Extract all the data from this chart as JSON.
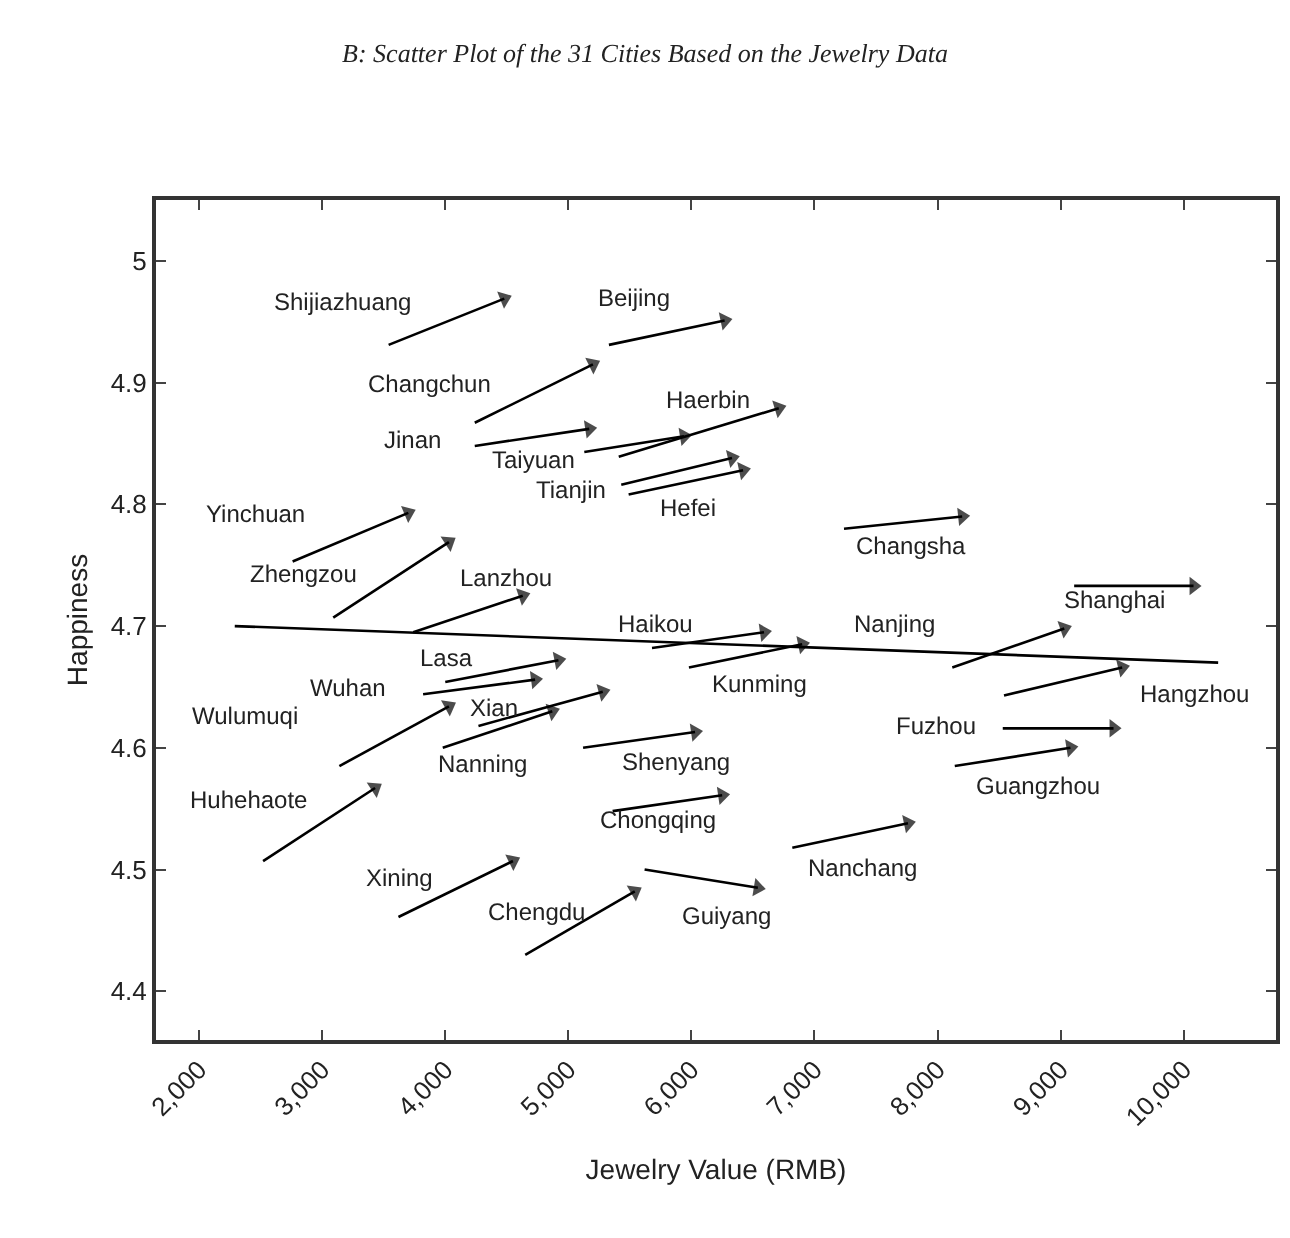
{
  "chart_data": {
    "type": "line",
    "title": "B: Scatter Plot of the 31 Cities Based on the Jewelry Data",
    "xlabel": "Jewelry Value (RMB)",
    "ylabel": "Happiness",
    "xlim": [
      1650,
      10750
    ],
    "ylim": [
      4.36,
      5.05
    ],
    "xticks": [
      {
        "value": 2000,
        "label": "2,000"
      },
      {
        "value": 3000,
        "label": "3,000"
      },
      {
        "value": 4000,
        "label": "4,000"
      },
      {
        "value": 5000,
        "label": "5,000"
      },
      {
        "value": 6000,
        "label": "6,000"
      },
      {
        "value": 7000,
        "label": "7,000"
      },
      {
        "value": 8000,
        "label": "8,000"
      },
      {
        "value": 9000,
        "label": "9,000"
      },
      {
        "value": 10000,
        "label": "10,000"
      }
    ],
    "yticks": [
      4.4,
      4.5,
      4.6,
      4.7,
      4.8,
      4.9,
      5
    ],
    "legend": false,
    "marker": "triangle",
    "line_style": "solid",
    "series": [
      {
        "name": "Shijiazhuang",
        "color": "#000000",
        "x": [
          3540,
          4480
        ],
        "values": [
          4.931,
          4.969
        ]
      },
      {
        "name": "Beijing",
        "color": "#000000",
        "x": [
          5330,
          6270
        ],
        "values": [
          4.931,
          4.951
        ]
      },
      {
        "name": "Changchun",
        "color": "#000000",
        "x": [
          4240,
          5200
        ],
        "values": [
          4.867,
          4.915
        ]
      },
      {
        "name": "Jinan",
        "color": "#000000",
        "x": [
          4240,
          5170
        ],
        "values": [
          4.848,
          4.862
        ]
      },
      {
        "name": "Taiyuan",
        "color": "#000000",
        "x": [
          5130,
          5940
        ],
        "values": [
          4.843,
          4.856
        ]
      },
      {
        "name": "Haerbin",
        "color": "#000000",
        "x": [
          5410,
          6710
        ],
        "values": [
          4.839,
          4.879
        ]
      },
      {
        "name": "Tianjin",
        "color": "#000000",
        "x": [
          5430,
          6330
        ],
        "values": [
          4.816,
          4.838
        ]
      },
      {
        "name": "Hefei",
        "color": "#000000",
        "x": [
          5490,
          6420
        ],
        "values": [
          4.808,
          4.828
        ]
      },
      {
        "name": "Yinchuan",
        "color": "#000000",
        "x": [
          2760,
          3700
        ],
        "values": [
          4.753,
          4.793
        ]
      },
      {
        "name": "Zhengzou",
        "color": "#000000",
        "x": [
          3090,
          4030
        ],
        "values": [
          4.707,
          4.769
        ]
      },
      {
        "name": "Lanzhou",
        "color": "#000000",
        "x": [
          3740,
          4630
        ],
        "values": [
          4.695,
          4.725
        ]
      },
      {
        "name": "Changsha",
        "color": "#000000",
        "x": [
          7240,
          8200
        ],
        "values": [
          4.78,
          4.79
        ]
      },
      {
        "name": "Shanghai",
        "color": "#000000",
        "x": [
          9110,
          10080
        ],
        "values": [
          4.733,
          4.733
        ]
      },
      {
        "name": "Haikou",
        "color": "#000000",
        "x": [
          5680,
          6590
        ],
        "values": [
          4.682,
          4.695
        ]
      },
      {
        "name": "Kunming",
        "color": "#000000",
        "x": [
          5980,
          6900
        ],
        "values": [
          4.666,
          4.685
        ]
      },
      {
        "name": "Lasa",
        "color": "#000000",
        "x": [
          4000,
          4920
        ],
        "values": [
          4.654,
          4.672
        ]
      },
      {
        "name": "Wuhan",
        "color": "#000000",
        "x": [
          3820,
          4730
        ],
        "values": [
          4.644,
          4.656
        ]
      },
      {
        "name": "Wulumuqi",
        "color": "#000000",
        "x": [
          3140,
          4030
        ],
        "values": [
          4.585,
          4.634
        ]
      },
      {
        "name": "Xian",
        "color": "#000000",
        "x": [
          4270,
          5280
        ],
        "values": [
          4.618,
          4.646
        ]
      },
      {
        "name": "Nanning",
        "color": "#000000",
        "x": [
          3980,
          4870
        ],
        "values": [
          4.6,
          4.63
        ]
      },
      {
        "name": "Huhehaote",
        "color": "#000000",
        "x": [
          2520,
          3430
        ],
        "values": [
          4.507,
          4.567
        ]
      },
      {
        "name": "Xining",
        "color": "#000000",
        "x": [
          3620,
          4550
        ],
        "values": [
          4.461,
          4.507
        ]
      },
      {
        "name": "Chengdu",
        "color": "#000000",
        "x": [
          4650,
          5540
        ],
        "values": [
          4.43,
          4.482
        ]
      },
      {
        "name": "Shenyang",
        "color": "#000000",
        "x": [
          5120,
          6030
        ],
        "values": [
          4.6,
          4.613
        ]
      },
      {
        "name": "Chongqing",
        "color": "#000000",
        "x": [
          5360,
          6250
        ],
        "values": [
          4.548,
          4.561
        ]
      },
      {
        "name": "Guiyang",
        "color": "#000000",
        "x": [
          5620,
          6540
        ],
        "values": [
          4.5,
          4.485
        ]
      },
      {
        "name": "Nanjing",
        "color": "#000000",
        "x": [
          8120,
          9030
        ],
        "values": [
          4.666,
          4.698
        ]
      },
      {
        "name": "Hangzhou",
        "color": "#000000",
        "x": [
          8540,
          9500
        ],
        "values": [
          4.643,
          4.666
        ]
      },
      {
        "name": "Fuzhou",
        "color": "#000000",
        "x": [
          8530,
          9430
        ],
        "values": [
          4.616,
          4.616
        ]
      },
      {
        "name": "Guangzhou",
        "color": "#000000",
        "x": [
          8140,
          9080
        ],
        "values": [
          4.585,
          4.6
        ]
      },
      {
        "name": "Nanchang",
        "color": "#000000",
        "x": [
          6820,
          7760
        ],
        "values": [
          4.518,
          4.538
        ]
      },
      {
        "color": "#000000",
        "marker": "none",
        "x": [
          2290,
          10280
        ],
        "values": [
          4.7,
          4.67
        ]
      }
    ]
  }
}
